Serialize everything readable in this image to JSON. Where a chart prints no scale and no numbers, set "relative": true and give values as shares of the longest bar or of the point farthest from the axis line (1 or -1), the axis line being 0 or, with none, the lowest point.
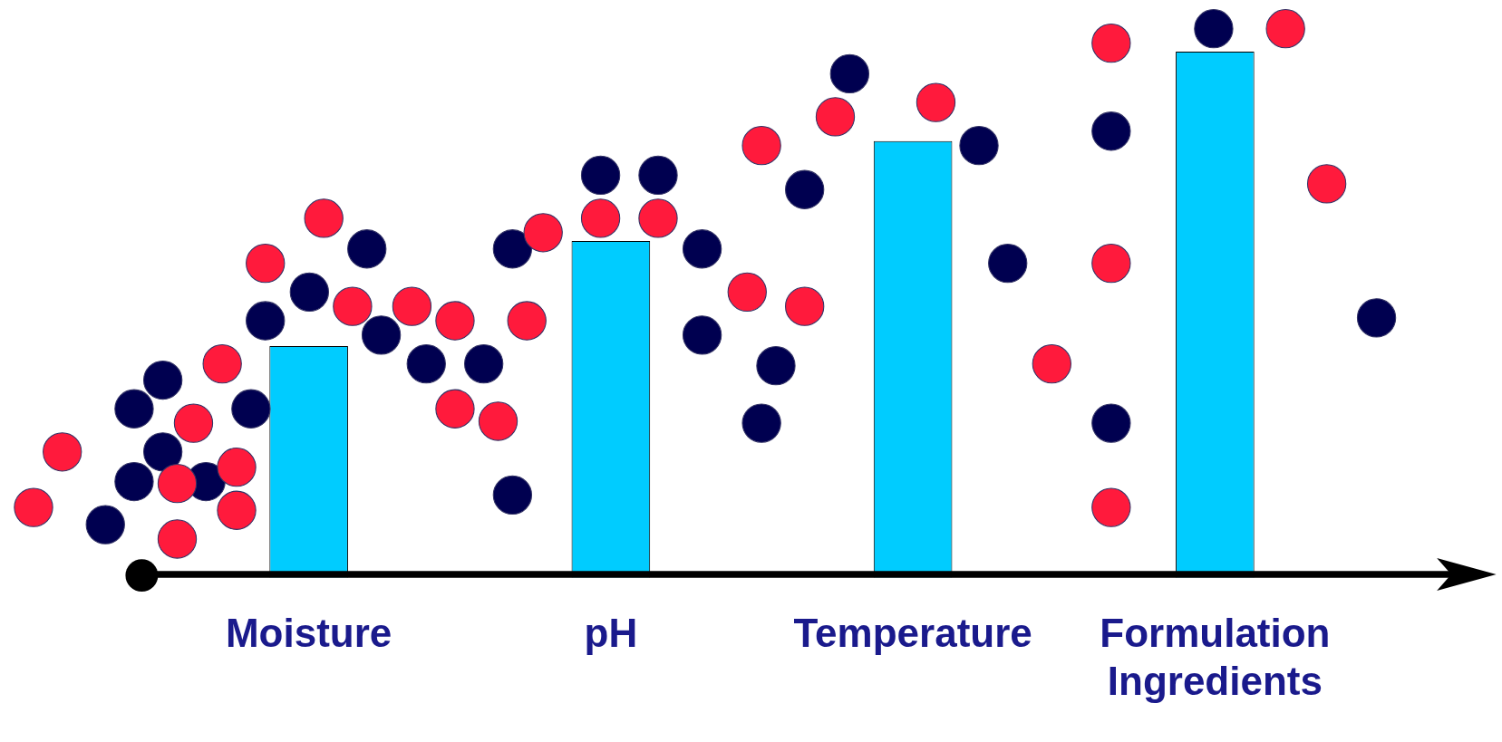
{
  "chart_data": {
    "type": "bar",
    "relative": true,
    "categories": [
      "Moisture",
      "pH",
      "Temperature",
      "Formulation Ingredients"
    ],
    "values": [
      0.44,
      0.64,
      0.83,
      1
    ],
    "color": "#00ccff",
    "grid": false,
    "legend": false,
    "tick_labels": "x"
  }
}
